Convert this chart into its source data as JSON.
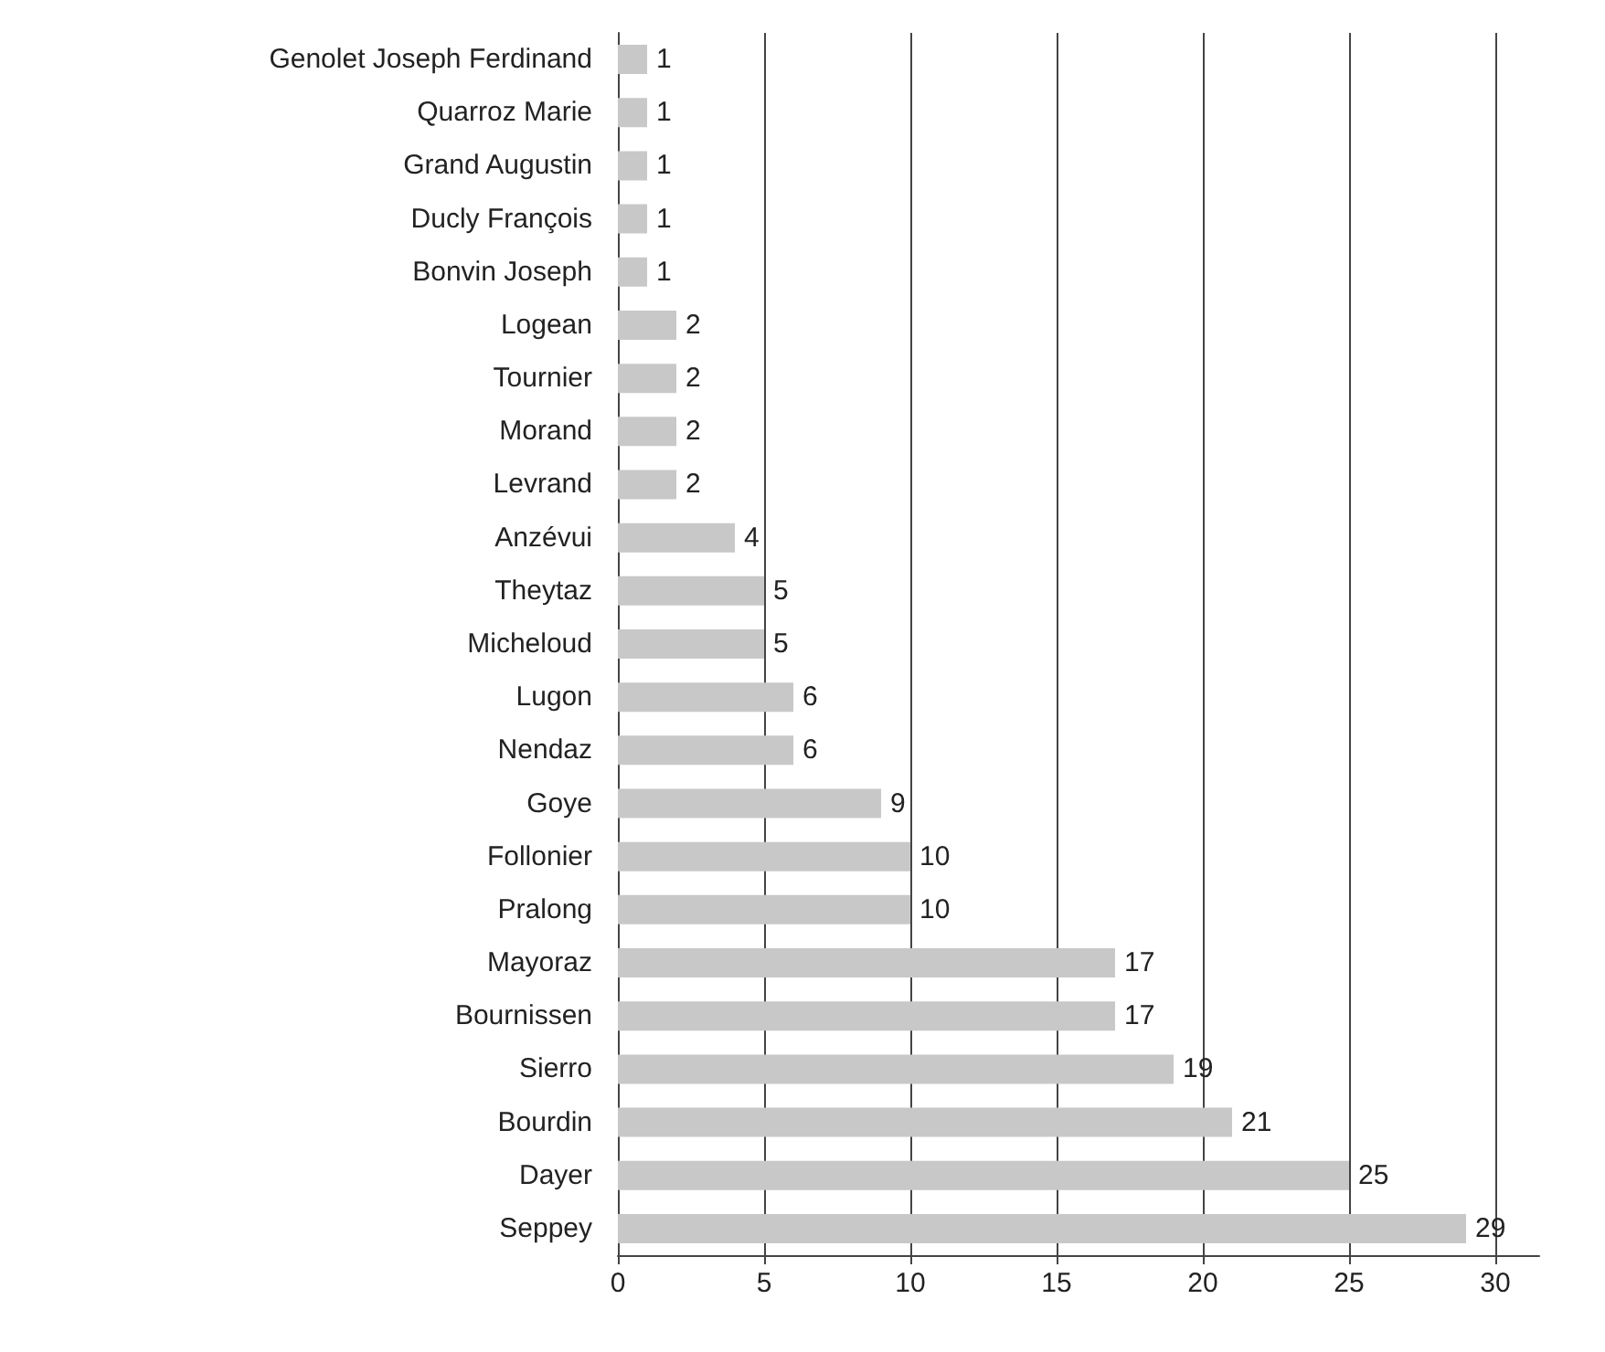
{
  "chart_data": {
    "type": "bar",
    "orientation": "horizontal",
    "categories": [
      "Genolet Joseph Ferdinand",
      "Quarroz Marie",
      "Grand Augustin",
      "Ducly François",
      "Bonvin Joseph",
      "Logean",
      "Tournier",
      "Morand",
      "Levrand",
      "Anzévui",
      "Theytaz",
      "Micheloud",
      "Lugon",
      "Nendaz",
      "Goye",
      "Follonier",
      "Pralong",
      "Mayoraz",
      "Bournissen",
      "Sierro",
      "Bourdin",
      "Dayer",
      "Seppey"
    ],
    "values": [
      1,
      1,
      1,
      1,
      1,
      2,
      2,
      2,
      2,
      4,
      5,
      5,
      6,
      6,
      9,
      10,
      10,
      17,
      17,
      19,
      21,
      25,
      29
    ],
    "color": "#c8c8c8",
    "xlim": [
      0,
      31.5
    ],
    "xticks": [
      0,
      5,
      10,
      15,
      20,
      25,
      30
    ],
    "grid": "x",
    "data_labels": true
  }
}
